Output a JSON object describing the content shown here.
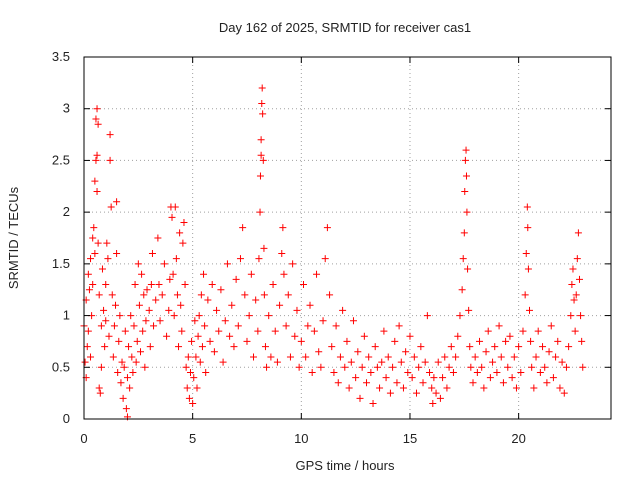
{
  "chart_data": {
    "type": "scatter",
    "title": "Day 162 of 2025, SRMTID for receiver cas1",
    "xlabel": "GPS time / hours",
    "ylabel": "SRMTID / TECUs",
    "xlim": [
      0,
      24.25
    ],
    "ylim": [
      0,
      3.5
    ],
    "x_ticks": [
      0,
      5,
      10,
      15,
      20
    ],
    "x_tick_labels": [
      "0",
      "5",
      "10",
      "15",
      "20"
    ],
    "y_ticks": [
      0,
      0.5,
      1,
      1.5,
      2,
      2.5,
      3,
      3.5
    ],
    "y_tick_labels": [
      "0",
      "0.5",
      "1",
      "1.5",
      "2",
      "2.5",
      "3",
      "3.5"
    ],
    "grid": true,
    "marker": "+",
    "marker_color": "#ff0000",
    "series": [
      {
        "name": "cas1 SRMTID",
        "points": [
          [
            0.0,
            0.9
          ],
          [
            0.05,
            0.55
          ],
          [
            0.1,
            1.15
          ],
          [
            0.1,
            0.4
          ],
          [
            0.15,
            0.7
          ],
          [
            0.2,
            1.4
          ],
          [
            0.2,
            0.85
          ],
          [
            0.25,
            1.25
          ],
          [
            0.3,
            0.6
          ],
          [
            0.3,
            1.55
          ],
          [
            0.35,
            1.0
          ],
          [
            0.4,
            1.75
          ],
          [
            0.4,
            1.3
          ],
          [
            0.45,
            1.85
          ],
          [
            0.5,
            1.6
          ],
          [
            0.5,
            2.3
          ],
          [
            0.55,
            2.5
          ],
          [
            0.55,
            2.9
          ],
          [
            0.6,
            3.0
          ],
          [
            0.6,
            2.55
          ],
          [
            0.6,
            2.2
          ],
          [
            0.65,
            1.7
          ],
          [
            0.65,
            2.85
          ],
          [
            0.7,
            1.2
          ],
          [
            0.7,
            0.3
          ],
          [
            0.75,
            0.25
          ],
          [
            0.8,
            0.5
          ],
          [
            0.8,
            0.9
          ],
          [
            0.85,
            1.45
          ],
          [
            0.9,
            1.05
          ],
          [
            0.95,
            0.7
          ],
          [
            1.0,
            1.3
          ],
          [
            1.0,
            0.95
          ],
          [
            1.05,
            1.7
          ],
          [
            1.1,
            1.55
          ],
          [
            1.15,
            0.8
          ],
          [
            1.2,
            2.75
          ],
          [
            1.2,
            2.5
          ],
          [
            1.25,
            2.05
          ],
          [
            1.3,
            1.2
          ],
          [
            1.35,
            0.6
          ],
          [
            1.4,
            0.9
          ],
          [
            1.45,
            1.1
          ],
          [
            1.5,
            2.1
          ],
          [
            1.5,
            1.6
          ],
          [
            1.55,
            0.45
          ],
          [
            1.6,
            0.75
          ],
          [
            1.65,
            1.0
          ],
          [
            1.7,
            0.35
          ],
          [
            1.75,
            0.55
          ],
          [
            1.8,
            0.2
          ],
          [
            1.85,
            0.5
          ],
          [
            1.9,
            0.85
          ],
          [
            1.95,
            0.1
          ],
          [
            2.0,
            0.4
          ],
          [
            2.0,
            0.02
          ],
          [
            2.05,
            0.7
          ],
          [
            2.1,
            0.3
          ],
          [
            2.15,
            1.0
          ],
          [
            2.2,
            0.6
          ],
          [
            2.25,
            0.45
          ],
          [
            2.3,
            0.9
          ],
          [
            2.35,
            1.3
          ],
          [
            2.4,
            0.55
          ],
          [
            2.45,
            0.75
          ],
          [
            2.5,
            1.5
          ],
          [
            2.55,
            1.1
          ],
          [
            2.6,
            0.65
          ],
          [
            2.65,
            1.4
          ],
          [
            2.7,
            0.85
          ],
          [
            2.75,
            1.2
          ],
          [
            2.8,
            0.5
          ],
          [
            2.85,
            0.95
          ],
          [
            2.9,
            1.25
          ],
          [
            3.0,
            1.05
          ],
          [
            3.05,
            0.7
          ],
          [
            3.1,
            1.3
          ],
          [
            3.15,
            1.6
          ],
          [
            3.2,
            0.9
          ],
          [
            3.3,
            1.15
          ],
          [
            3.4,
            1.75
          ],
          [
            3.45,
            1.3
          ],
          [
            3.5,
            0.95
          ],
          [
            3.6,
            1.2
          ],
          [
            3.7,
            1.5
          ],
          [
            3.8,
            0.8
          ],
          [
            3.9,
            1.05
          ],
          [
            3.95,
            1.35
          ],
          [
            4.0,
            2.05
          ],
          [
            4.05,
            1.95
          ],
          [
            4.1,
            1.4
          ],
          [
            4.15,
            1.0
          ],
          [
            4.2,
            2.05
          ],
          [
            4.25,
            1.55
          ],
          [
            4.3,
            1.2
          ],
          [
            4.35,
            0.7
          ],
          [
            4.4,
            1.8
          ],
          [
            4.45,
            1.1
          ],
          [
            4.5,
            0.85
          ],
          [
            4.55,
            1.7
          ],
          [
            4.6,
            1.9
          ],
          [
            4.65,
            1.3
          ],
          [
            4.7,
            0.5
          ],
          [
            4.75,
            0.3
          ],
          [
            4.8,
            0.6
          ],
          [
            4.85,
            0.2
          ],
          [
            4.9,
            0.45
          ],
          [
            4.95,
            0.75
          ],
          [
            5.0,
            0.15
          ],
          [
            5.05,
            0.4
          ],
          [
            5.1,
            0.95
          ],
          [
            5.15,
            0.6
          ],
          [
            5.2,
            0.3
          ],
          [
            5.25,
            0.8
          ],
          [
            5.3,
            1.0
          ],
          [
            5.35,
            0.55
          ],
          [
            5.4,
            1.2
          ],
          [
            5.45,
            0.7
          ],
          [
            5.5,
            1.4
          ],
          [
            5.55,
            0.9
          ],
          [
            5.6,
            0.45
          ],
          [
            5.7,
            1.15
          ],
          [
            5.8,
            0.75
          ],
          [
            5.9,
            1.3
          ],
          [
            6.0,
            0.65
          ],
          [
            6.1,
            1.05
          ],
          [
            6.2,
            0.85
          ],
          [
            6.3,
            1.25
          ],
          [
            6.4,
            0.55
          ],
          [
            6.5,
            0.95
          ],
          [
            6.6,
            1.5
          ],
          [
            6.7,
            0.8
          ],
          [
            6.8,
            1.1
          ],
          [
            6.9,
            0.7
          ],
          [
            7.0,
            1.35
          ],
          [
            7.1,
            0.9
          ],
          [
            7.2,
            1.55
          ],
          [
            7.3,
            1.85
          ],
          [
            7.4,
            1.2
          ],
          [
            7.5,
            0.75
          ],
          [
            7.6,
            1.0
          ],
          [
            7.7,
            1.4
          ],
          [
            7.8,
            0.6
          ],
          [
            7.9,
            1.15
          ],
          [
            8.0,
            0.85
          ],
          [
            8.05,
            1.55
          ],
          [
            8.1,
            2.0
          ],
          [
            8.12,
            2.35
          ],
          [
            8.15,
            2.55
          ],
          [
            8.15,
            2.7
          ],
          [
            8.18,
            3.05
          ],
          [
            8.2,
            3.2
          ],
          [
            8.22,
            2.95
          ],
          [
            8.25,
            2.5
          ],
          [
            8.28,
            1.65
          ],
          [
            8.3,
            1.2
          ],
          [
            8.35,
            0.7
          ],
          [
            8.4,
            0.5
          ],
          [
            8.5,
            1.0
          ],
          [
            8.6,
            0.6
          ],
          [
            8.7,
            1.3
          ],
          [
            8.8,
            0.85
          ],
          [
            8.9,
            0.55
          ],
          [
            9.0,
            1.1
          ],
          [
            9.1,
            1.6
          ],
          [
            9.15,
            1.85
          ],
          [
            9.2,
            1.4
          ],
          [
            9.3,
            0.9
          ],
          [
            9.4,
            1.2
          ],
          [
            9.5,
            0.6
          ],
          [
            9.6,
            1.5
          ],
          [
            9.7,
            0.8
          ],
          [
            9.8,
            1.05
          ],
          [
            9.9,
            0.5
          ],
          [
            10.0,
            0.75
          ],
          [
            10.1,
            1.3
          ],
          [
            10.2,
            0.6
          ],
          [
            10.3,
            0.9
          ],
          [
            10.4,
            1.1
          ],
          [
            10.5,
            0.45
          ],
          [
            10.6,
            0.85
          ],
          [
            10.7,
            1.4
          ],
          [
            10.8,
            0.65
          ],
          [
            10.9,
            0.5
          ],
          [
            11.0,
            0.95
          ],
          [
            11.1,
            1.55
          ],
          [
            11.2,
            1.85
          ],
          [
            11.3,
            1.2
          ],
          [
            11.4,
            0.7
          ],
          [
            11.5,
            0.45
          ],
          [
            11.6,
            0.9
          ],
          [
            11.7,
            0.35
          ],
          [
            11.8,
            0.6
          ],
          [
            11.9,
            1.05
          ],
          [
            12.0,
            0.5
          ],
          [
            12.1,
            0.75
          ],
          [
            12.2,
            0.3
          ],
          [
            12.3,
            0.55
          ],
          [
            12.4,
            0.95
          ],
          [
            12.5,
            0.4
          ],
          [
            12.6,
            0.65
          ],
          [
            12.7,
            0.2
          ],
          [
            12.8,
            0.5
          ],
          [
            12.9,
            0.8
          ],
          [
            13.0,
            0.35
          ],
          [
            13.1,
            0.6
          ],
          [
            13.2,
            0.45
          ],
          [
            13.3,
            0.15
          ],
          [
            13.4,
            0.7
          ],
          [
            13.5,
            0.5
          ],
          [
            13.6,
            0.3
          ],
          [
            13.7,
            0.55
          ],
          [
            13.8,
            0.85
          ],
          [
            13.9,
            0.4
          ],
          [
            14.0,
            0.6
          ],
          [
            14.1,
            0.25
          ],
          [
            14.2,
            0.5
          ],
          [
            14.3,
            0.75
          ],
          [
            14.4,
            0.35
          ],
          [
            14.5,
            0.9
          ],
          [
            14.6,
            0.55
          ],
          [
            14.7,
            0.3
          ],
          [
            14.8,
            0.65
          ],
          [
            14.9,
            0.45
          ],
          [
            15.0,
            0.8
          ],
          [
            15.1,
            0.4
          ],
          [
            15.2,
            0.6
          ],
          [
            15.3,
            0.25
          ],
          [
            15.4,
            0.5
          ],
          [
            15.5,
            0.7
          ],
          [
            15.6,
            0.35
          ],
          [
            15.7,
            0.55
          ],
          [
            15.8,
            1.0
          ],
          [
            15.9,
            0.45
          ],
          [
            16.0,
            0.3
          ],
          [
            16.05,
            0.15
          ],
          [
            16.1,
            0.4
          ],
          [
            16.2,
            0.25
          ],
          [
            16.3,
            0.55
          ],
          [
            16.4,
            0.2
          ],
          [
            16.5,
            0.4
          ],
          [
            16.6,
            0.6
          ],
          [
            16.7,
            0.3
          ],
          [
            16.8,
            0.5
          ],
          [
            16.9,
            0.7
          ],
          [
            17.0,
            0.45
          ],
          [
            17.1,
            0.6
          ],
          [
            17.2,
            0.8
          ],
          [
            17.3,
            1.0
          ],
          [
            17.4,
            1.25
          ],
          [
            17.45,
            1.55
          ],
          [
            17.5,
            1.8
          ],
          [
            17.52,
            2.2
          ],
          [
            17.55,
            2.5
          ],
          [
            17.58,
            2.6
          ],
          [
            17.6,
            2.35
          ],
          [
            17.62,
            2.0
          ],
          [
            17.65,
            1.45
          ],
          [
            17.7,
            1.05
          ],
          [
            17.75,
            0.7
          ],
          [
            17.8,
            0.5
          ],
          [
            17.9,
            0.35
          ],
          [
            18.0,
            0.6
          ],
          [
            18.1,
            0.45
          ],
          [
            18.2,
            0.75
          ],
          [
            18.3,
            0.5
          ],
          [
            18.4,
            0.3
          ],
          [
            18.5,
            0.65
          ],
          [
            18.6,
            0.85
          ],
          [
            18.7,
            0.4
          ],
          [
            18.8,
            0.55
          ],
          [
            18.9,
            0.7
          ],
          [
            19.0,
            0.45
          ],
          [
            19.1,
            0.9
          ],
          [
            19.2,
            0.6
          ],
          [
            19.3,
            0.35
          ],
          [
            19.4,
            0.75
          ],
          [
            19.5,
            0.5
          ],
          [
            19.6,
            0.8
          ],
          [
            19.7,
            0.4
          ],
          [
            19.8,
            0.6
          ],
          [
            19.9,
            0.3
          ],
          [
            20.0,
            0.7
          ],
          [
            20.1,
            0.45
          ],
          [
            20.2,
            0.85
          ],
          [
            20.3,
            1.2
          ],
          [
            20.35,
            1.6
          ],
          [
            20.4,
            2.05
          ],
          [
            20.42,
            1.85
          ],
          [
            20.45,
            1.45
          ],
          [
            20.5,
            1.05
          ],
          [
            20.55,
            0.75
          ],
          [
            20.6,
            0.5
          ],
          [
            20.7,
            0.3
          ],
          [
            20.8,
            0.6
          ],
          [
            20.9,
            0.85
          ],
          [
            21.0,
            0.45
          ],
          [
            21.1,
            0.7
          ],
          [
            21.2,
            0.5
          ],
          [
            21.3,
            0.35
          ],
          [
            21.4,
            0.65
          ],
          [
            21.5,
            0.9
          ],
          [
            21.6,
            0.4
          ],
          [
            21.7,
            0.6
          ],
          [
            21.8,
            0.75
          ],
          [
            21.9,
            0.3
          ],
          [
            22.0,
            0.55
          ],
          [
            22.1,
            0.25
          ],
          [
            22.2,
            0.5
          ],
          [
            22.3,
            0.7
          ],
          [
            22.4,
            1.0
          ],
          [
            22.45,
            1.3
          ],
          [
            22.5,
            1.45
          ],
          [
            22.55,
            1.15
          ],
          [
            22.6,
            0.85
          ],
          [
            22.65,
            1.2
          ],
          [
            22.7,
            1.55
          ],
          [
            22.75,
            1.8
          ],
          [
            22.8,
            1.35
          ],
          [
            22.85,
            1.0
          ],
          [
            22.9,
            0.75
          ],
          [
            22.95,
            0.5
          ]
        ]
      }
    ]
  }
}
